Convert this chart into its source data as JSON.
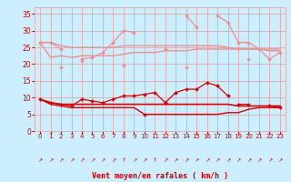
{
  "x": [
    0,
    1,
    2,
    3,
    4,
    5,
    6,
    7,
    8,
    9,
    10,
    11,
    12,
    13,
    14,
    15,
    16,
    17,
    18,
    19,
    20,
    21,
    22,
    23
  ],
  "series": [
    {
      "label": "rafales_high",
      "color": "#f09090",
      "linewidth": 0.9,
      "marker": "D",
      "markersize": 2.0,
      "values": [
        26.5,
        26.5,
        24.5,
        null,
        21.5,
        22.0,
        23.5,
        26.5,
        30.0,
        29.5,
        null,
        null,
        24.5,
        null,
        34.5,
        31.0,
        null,
        34.5,
        32.5,
        26.5,
        26.5,
        24.5,
        21.5,
        23.5
      ]
    },
    {
      "label": "avg_high",
      "color": "#f09090",
      "linewidth": 1.0,
      "marker": null,
      "markersize": 0,
      "values": [
        26.5,
        26.5,
        25.5,
        25.0,
        25.0,
        25.0,
        25.0,
        25.0,
        25.5,
        25.5,
        25.5,
        25.5,
        25.5,
        25.5,
        25.5,
        25.5,
        25.5,
        25.5,
        25.0,
        24.5,
        24.5,
        24.5,
        24.0,
        24.0
      ]
    },
    {
      "label": "avg_mid",
      "color": "#f09090",
      "linewidth": 1.0,
      "marker": null,
      "markersize": 0,
      "values": [
        26.5,
        22.0,
        22.5,
        22.0,
        22.5,
        22.5,
        22.5,
        22.5,
        23.0,
        23.5,
        23.5,
        23.5,
        24.0,
        24.0,
        24.0,
        24.5,
        24.5,
        24.5,
        24.5,
        24.5,
        24.5,
        24.5,
        24.5,
        24.5
      ]
    },
    {
      "label": "rafales_low",
      "color": "#f09090",
      "linewidth": 0.9,
      "marker": "D",
      "markersize": 2.0,
      "values": [
        26.5,
        null,
        19.0,
        null,
        21.0,
        null,
        null,
        null,
        19.5,
        null,
        null,
        null,
        null,
        null,
        19.0,
        null,
        null,
        null,
        null,
        null,
        21.5,
        null,
        null,
        null
      ]
    },
    {
      "label": "wind_rafales",
      "color": "#dd0000",
      "linewidth": 0.9,
      "marker": "D",
      "markersize": 2.0,
      "values": [
        9.5,
        8.5,
        8.0,
        7.5,
        9.5,
        9.0,
        8.5,
        9.5,
        10.5,
        10.5,
        11.0,
        11.5,
        8.5,
        11.5,
        12.5,
        12.5,
        14.5,
        13.5,
        10.5,
        null,
        null,
        null,
        null,
        null
      ]
    },
    {
      "label": "wind_avg_high",
      "color": "#dd0000",
      "linewidth": 1.2,
      "marker": null,
      "markersize": 0,
      "values": [
        9.5,
        8.5,
        8.0,
        8.0,
        8.0,
        8.0,
        8.0,
        8.0,
        8.0,
        8.0,
        8.0,
        8.0,
        8.0,
        8.0,
        8.0,
        8.0,
        8.0,
        8.0,
        8.0,
        7.5,
        7.5,
        7.5,
        7.5,
        7.5
      ]
    },
    {
      "label": "wind_avg_low",
      "color": "#dd0000",
      "linewidth": 1.0,
      "marker": null,
      "markersize": 0,
      "values": [
        9.5,
        8.0,
        7.5,
        7.0,
        7.0,
        7.0,
        7.0,
        7.0,
        7.0,
        7.0,
        5.0,
        5.0,
        5.0,
        5.0,
        5.0,
        5.0,
        5.0,
        5.0,
        5.5,
        5.5,
        6.5,
        7.0,
        7.0,
        7.0
      ]
    },
    {
      "label": "wind_dots",
      "color": "#dd0000",
      "linewidth": 0.9,
      "marker": "D",
      "markersize": 2.0,
      "values": [
        null,
        null,
        null,
        null,
        null,
        null,
        null,
        null,
        null,
        null,
        5.0,
        null,
        8.5,
        null,
        null,
        null,
        null,
        null,
        null,
        8.0,
        8.0,
        null,
        7.5,
        7.0
      ]
    }
  ],
  "xlabel": "Vent moyen/en rafales ( km/h )",
  "xlim": [
    -0.5,
    23.5
  ],
  "ylim": [
    0,
    37
  ],
  "yticks": [
    0,
    5,
    10,
    15,
    20,
    25,
    30,
    35
  ],
  "xticks": [
    0,
    1,
    2,
    3,
    4,
    5,
    6,
    7,
    8,
    9,
    10,
    11,
    12,
    13,
    14,
    15,
    16,
    17,
    18,
    19,
    20,
    21,
    22,
    23
  ],
  "bg_color": "#cceeff",
  "grid_color": "#ddaaaa",
  "tick_color": "#cc0000",
  "label_color": "#cc0000",
  "arrows": [
    "↗",
    "↗",
    "↗",
    "↗",
    "↗",
    "↗",
    "↗",
    "↗",
    "↑",
    "↗",
    "↗",
    "↑",
    "↗",
    "↗",
    "↗",
    "↗",
    "↗",
    "↗",
    "↗",
    "↗",
    "↗",
    "↗",
    "↗",
    "↗"
  ]
}
